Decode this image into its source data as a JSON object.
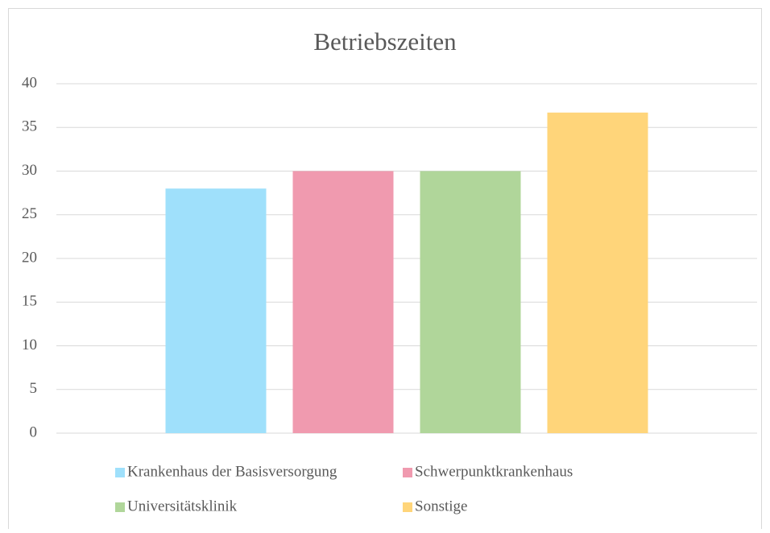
{
  "chart_data": {
    "type": "bar",
    "title": "Betriebszeiten",
    "categories": [
      null
    ],
    "series": [
      {
        "name": "Krankenhaus der Basisversorgung",
        "color": "#9fe0fb",
        "values": [
          28
        ]
      },
      {
        "name": "Schwerpunktkrankenhaus",
        "color": "#f09aaf",
        "values": [
          30
        ]
      },
      {
        "name": "Universitätsklinik",
        "color": "#b0d69a",
        "values": [
          30
        ]
      },
      {
        "name": "Sonstige",
        "color": "#ffd57a",
        "values": [
          36.7
        ]
      }
    ],
    "ylim": [
      0,
      40
    ],
    "yticks": [
      0,
      5,
      10,
      15,
      20,
      25,
      30,
      35,
      40
    ],
    "grid": true,
    "legend": "bottom"
  }
}
